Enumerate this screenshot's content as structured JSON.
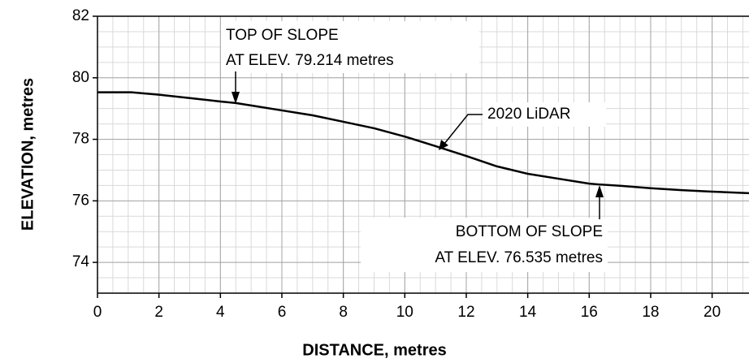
{
  "chart_data": {
    "type": "line",
    "xlabel": "DISTANCE, metres",
    "ylabel": "ELEVATION, metres",
    "x": [
      0,
      1.1,
      2,
      3,
      4,
      4.5,
      5,
      6,
      7,
      8,
      9,
      10,
      11,
      12,
      13,
      14,
      15,
      16,
      16.3,
      17,
      18,
      19,
      20,
      21.2
    ],
    "series": [
      {
        "name": "2020 LiDAR",
        "color": "#000000",
        "values": [
          79.53,
          79.53,
          79.45,
          79.34,
          79.23,
          79.18,
          79.1,
          78.94,
          78.78,
          78.57,
          78.36,
          78.09,
          77.78,
          77.46,
          77.12,
          76.88,
          76.72,
          76.56,
          76.535,
          76.49,
          76.41,
          76.35,
          76.3,
          76.25
        ]
      }
    ],
    "annotations": [
      {
        "lines": [
          "TOP OF SLOPE",
          "AT ELEV. 79.214 metres"
        ]
      },
      {
        "lines": [
          "BOTTOM OF SLOPE",
          "AT ELEV. 76.535 metres"
        ]
      }
    ],
    "xlim": [
      0,
      21.2
    ],
    "ylim": [
      73,
      82
    ],
    "xticks": [
      0,
      2,
      4,
      6,
      8,
      10,
      12,
      14,
      16,
      18,
      20
    ],
    "yticks": [
      74,
      76,
      78,
      80,
      82
    ],
    "grid": true,
    "minor_grid_step": 0.5
  }
}
